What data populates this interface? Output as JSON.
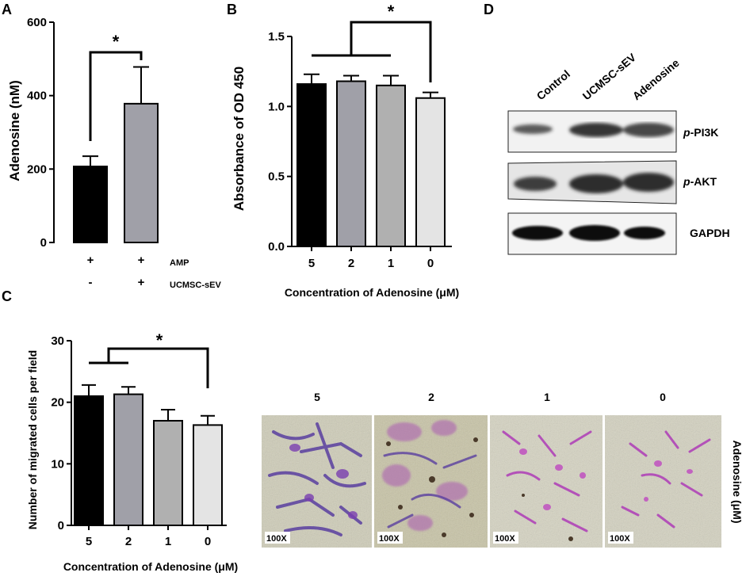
{
  "panels": {
    "a": {
      "letter": "A",
      "chart_data": {
        "type": "bar",
        "categories": [
          "AMP+ / UCMSC-sEV-",
          "AMP+ / UCMSC-sEV+"
        ],
        "values": [
          207,
          378
        ],
        "errors": [
          28,
          100
        ],
        "ylabel": "Adenosine (nM)",
        "ylim": [
          0,
          600
        ],
        "yticks": [
          0,
          200,
          400,
          600
        ],
        "bar_colors": [
          "#000000",
          "#a0a0a8"
        ],
        "significance": "*",
        "conditions": [
          {
            "label": "AMP",
            "values": [
              "+",
              "+"
            ]
          },
          {
            "label": "UCMSC-sEV",
            "values": [
              "-",
              "+"
            ]
          }
        ]
      }
    },
    "b": {
      "letter": "B",
      "chart_data": {
        "type": "bar",
        "categories": [
          "5",
          "2",
          "1",
          "0"
        ],
        "values": [
          1.16,
          1.18,
          1.15,
          1.06
        ],
        "errors": [
          0.07,
          0.04,
          0.07,
          0.04
        ],
        "ylabel": "Absorbance of OD 450",
        "xlabel": "Concentration of Adenosine (μM)",
        "ylim": [
          0,
          1.5
        ],
        "yticks": [
          "0.0",
          "0.5",
          "1.0",
          "1.5"
        ],
        "bar_colors": [
          "#000000",
          "#a0a0a8",
          "#b0b0b0",
          "#e4e4e4"
        ],
        "significance": "*"
      }
    },
    "c": {
      "letter": "C",
      "chart_data": {
        "type": "bar",
        "categories": [
          "5",
          "2",
          "1",
          "0"
        ],
        "values": [
          21,
          21.3,
          17,
          16.3
        ],
        "errors": [
          1.8,
          1.2,
          1.8,
          1.5
        ],
        "ylabel": "Number of migrated cells per field",
        "xlabel": "Concentration of Adenosine (μM)",
        "ylim": [
          0,
          30
        ],
        "yticks": [
          0,
          10,
          20,
          30
        ],
        "bar_colors": [
          "#000000",
          "#a0a0a8",
          "#b0b0b0",
          "#e4e4e4"
        ],
        "significance": "*"
      },
      "micrographs": {
        "side_label": "Adenosine (μM)",
        "magnification": "100X",
        "labels": [
          "5",
          "2",
          "1",
          "0"
        ]
      }
    },
    "d": {
      "letter": "D",
      "lanes": [
        "Control",
        "UCMSC-sEV",
        "Adenosine"
      ],
      "blots": [
        {
          "prefix": "p",
          "name": "-PI3K"
        },
        {
          "prefix": "p",
          "name": "-AKT"
        },
        {
          "prefix": "",
          "name": "GAPDH"
        }
      ]
    }
  }
}
